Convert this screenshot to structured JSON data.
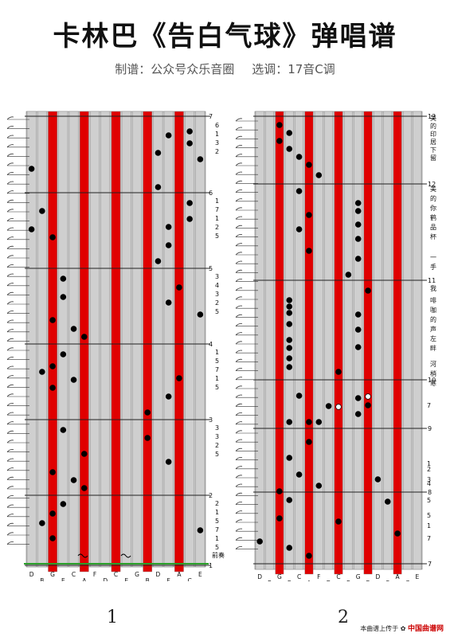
{
  "title": "卡林巴《告白气球》弹唱谱",
  "subtitle": {
    "maker": "制谱：公众号众乐音圈",
    "key": "选调：17音C调"
  },
  "page_numbers": [
    "1",
    "2"
  ],
  "footer": {
    "text": "本曲谱上传于",
    "brand": "中国曲谱网"
  },
  "keys": [
    "D",
    "B",
    "G",
    "E",
    "C",
    "A",
    "F",
    "D",
    "C",
    "E",
    "G",
    "B",
    "D",
    "F",
    "A",
    "C",
    "E"
  ],
  "red_keys": [
    2,
    5,
    8,
    11,
    14
  ],
  "panel1": {
    "measure_labels": [
      "7",
      "6",
      "5",
      "4",
      "3",
      "2",
      "1"
    ],
    "side_numbers": [
      [
        "6",
        "1",
        "3",
        "2"
      ],
      [
        "1",
        "7",
        "1",
        "2",
        "5"
      ],
      [
        "3",
        "4",
        "3",
        "2",
        "5"
      ],
      [
        "1",
        "5",
        "7",
        "1",
        "5"
      ],
      [
        "3",
        "3",
        "2",
        "5"
      ],
      [
        "2",
        "1",
        "5",
        "7",
        "1",
        "5"
      ]
    ],
    "prelude": "前奏"
  },
  "panel2": {
    "measure_labels": [
      "13",
      "12",
      "11",
      "10",
      "9",
      "8",
      "7"
    ],
    "side_numbers": [
      "7",
      "1",
      "2",
      "3",
      "4",
      "5",
      "5",
      "1",
      "7"
    ],
    "lyrics": [
      "美",
      "的",
      "印",
      "居",
      "下",
      "留",
      "美",
      "的",
      "你",
      "鹤",
      "品",
      "杯",
      "一",
      "手",
      "我",
      "啡",
      "咖",
      "的",
      "声",
      "左",
      "畔",
      "河",
      "梢",
      "寒"
    ]
  }
}
